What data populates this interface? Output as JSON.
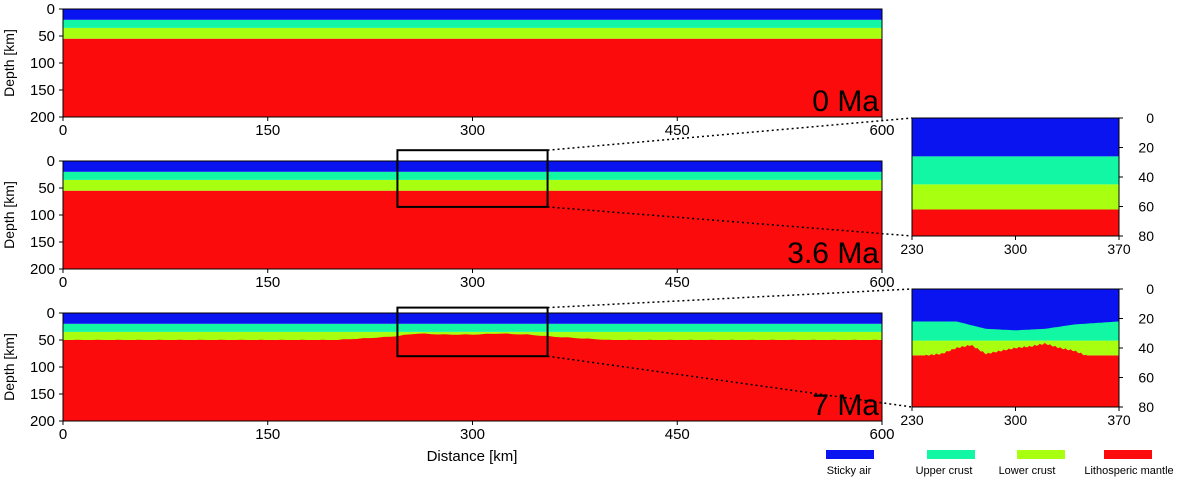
{
  "colors": {
    "sticky_air": "#0a14f0",
    "upper_crust": "#12f7a4",
    "lower_crust": "#a9ff10",
    "lithospheric_mantle": "#fb0b0b"
  },
  "figure": {
    "ylabel": "Depth [km]",
    "xlabel": "Distance [km]"
  },
  "legend": [
    {
      "key": "sticky_air",
      "label": "Sticky air"
    },
    {
      "key": "upper_crust",
      "label": "Upper crust"
    },
    {
      "key": "lower_crust",
      "label": "Lower crust"
    },
    {
      "key": "lithospheric_mantle",
      "label": "Lithosperic mantle"
    }
  ],
  "chart_data": [
    {
      "type": "heatmap",
      "panel": "main-0",
      "time_label": "0 Ma",
      "xlim": [
        0,
        600
      ],
      "ylim": [
        0,
        200
      ],
      "y_inverted": true,
      "xticks": [
        0,
        150,
        300,
        450,
        600
      ],
      "yticks": [
        0,
        50,
        100,
        150,
        200
      ],
      "ylabel": "Depth [km]",
      "layers": [
        {
          "key": "sticky_air",
          "top_depth": 0,
          "bottom_depth": 20
        },
        {
          "key": "upper_crust",
          "top_depth": 20,
          "bottom_depth": 35
        },
        {
          "key": "lower_crust",
          "top_depth": 35,
          "bottom_depth": 55
        },
        {
          "key": "lithospheric_mantle",
          "top_depth": 55,
          "bottom_depth": 200
        }
      ]
    },
    {
      "type": "heatmap",
      "panel": "main-1",
      "time_label": "3.6 Ma",
      "xlim": [
        0,
        600
      ],
      "ylim": [
        0,
        200
      ],
      "y_inverted": true,
      "xticks": [
        0,
        150,
        300,
        450,
        600
      ],
      "yticks": [
        0,
        50,
        100,
        150,
        200
      ],
      "ylabel": "Depth [km]",
      "zoom_box": {
        "x": [
          245,
          355
        ],
        "depth": [
          -20,
          85
        ]
      },
      "layers": [
        {
          "key": "sticky_air",
          "top_depth": 0,
          "bottom_depth": 20
        },
        {
          "key": "upper_crust",
          "top_depth": 20,
          "bottom_depth": 35
        },
        {
          "key": "lower_crust",
          "top_depth": 35,
          "bottom_depth": 55
        },
        {
          "key": "lithospheric_mantle",
          "top_depth": 55,
          "bottom_depth": 200
        }
      ]
    },
    {
      "type": "heatmap",
      "panel": "main-2",
      "time_label": "7 Ma",
      "xlim": [
        0,
        600
      ],
      "ylim": [
        0,
        200
      ],
      "y_inverted": true,
      "xticks": [
        0,
        150,
        300,
        450,
        600
      ],
      "yticks": [
        0,
        50,
        100,
        150,
        200
      ],
      "ylabel": "Depth [km]",
      "xlabel": "Distance [km]",
      "zoom_box": {
        "x": [
          245,
          355
        ],
        "depth": [
          -10,
          80
        ]
      },
      "layers": [
        {
          "key": "sticky_air",
          "top_depth": 0,
          "bottom_depth": 20
        },
        {
          "key": "upper_crust",
          "top_depth": 20,
          "bottom_depth": 35
        },
        {
          "key": "lower_crust",
          "top_depth": 35,
          "bottom_depth": 50
        },
        {
          "key": "lithospheric_mantle",
          "top_depth": 50,
          "bottom_depth": 200
        }
      ],
      "moho_profile": {
        "x": [
          0,
          200,
          240,
          260,
          280,
          300,
          320,
          340,
          360,
          400,
          600
        ],
        "depth": [
          50,
          50,
          44,
          38,
          40,
          40,
          38,
          40,
          44,
          50,
          50
        ]
      }
    },
    {
      "type": "heatmap",
      "panel": "zoom-1",
      "xlim": [
        230,
        370
      ],
      "ylim": [
        0,
        80
      ],
      "y_inverted": true,
      "xticks": [
        230,
        300,
        370
      ],
      "yticks": [
        0,
        20,
        40,
        60,
        80
      ],
      "layers": [
        {
          "key": "sticky_air",
          "top_depth": 0,
          "bottom_depth": 26
        },
        {
          "key": "upper_crust",
          "top_depth": 26,
          "bottom_depth": 45
        },
        {
          "key": "lower_crust",
          "top_depth": 45,
          "bottom_depth": 62
        },
        {
          "key": "lithospheric_mantle",
          "top_depth": 62,
          "bottom_depth": 80
        }
      ]
    },
    {
      "type": "heatmap",
      "panel": "zoom-2",
      "xlim": [
        230,
        370
      ],
      "ylim": [
        0,
        80
      ],
      "y_inverted": true,
      "xticks": [
        230,
        300,
        370
      ],
      "yticks": [
        0,
        20,
        40,
        60,
        80
      ],
      "layers": [
        {
          "key": "sticky_air",
          "top_depth": 0,
          "bottom_depth": 22
        },
        {
          "key": "upper_crust",
          "top_depth": 22,
          "bottom_depth": 35
        },
        {
          "key": "lower_crust",
          "top_depth": 35,
          "bottom_depth": 45
        },
        {
          "key": "lithospheric_mantle",
          "top_depth": 45,
          "bottom_depth": 80
        }
      ],
      "air_base_profile": {
        "x": [
          230,
          260,
          280,
          300,
          320,
          340,
          370
        ],
        "depth": [
          22,
          22,
          27,
          28,
          27,
          24,
          22
        ]
      },
      "moho_profile": {
        "x": [
          230,
          250,
          260,
          270,
          280,
          290,
          300,
          310,
          320,
          330,
          340,
          350,
          370
        ],
        "depth": [
          46,
          44,
          40,
          38,
          44,
          42,
          40,
          39,
          37,
          40,
          42,
          46,
          48
        ]
      }
    }
  ]
}
